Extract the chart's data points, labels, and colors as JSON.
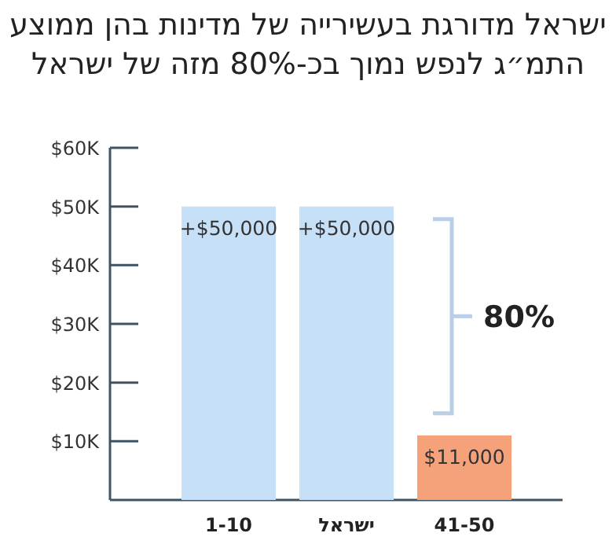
{
  "chart_data": {
    "type": "bar",
    "title": "ישראל מדורגת בעשירייה של מדינות בהן ממוצע התמ״ג לנפש נמוך בכ-80% מזה של ישראל",
    "categories": [
      "1-10",
      "ישראל",
      "41-50"
    ],
    "values": [
      50000,
      50000,
      11000
    ],
    "colors": [
      "#c6e0f7",
      "#c6e0f7",
      "#f5a27a"
    ],
    "value_labels": [
      "+$50,000",
      "+$50,000",
      "$11,000"
    ],
    "ylim": [
      0,
      60000
    ],
    "yticks": [
      {
        "value": 10000,
        "label": "$10K"
      },
      {
        "value": 20000,
        "label": "$20K"
      },
      {
        "value": 30000,
        "label": "$30K"
      },
      {
        "value": 40000,
        "label": "$40K"
      },
      {
        "value": 50000,
        "label": "$50K"
      },
      {
        "value": 60000,
        "label": "$60K"
      }
    ],
    "annotations": [
      "80%"
    ]
  }
}
